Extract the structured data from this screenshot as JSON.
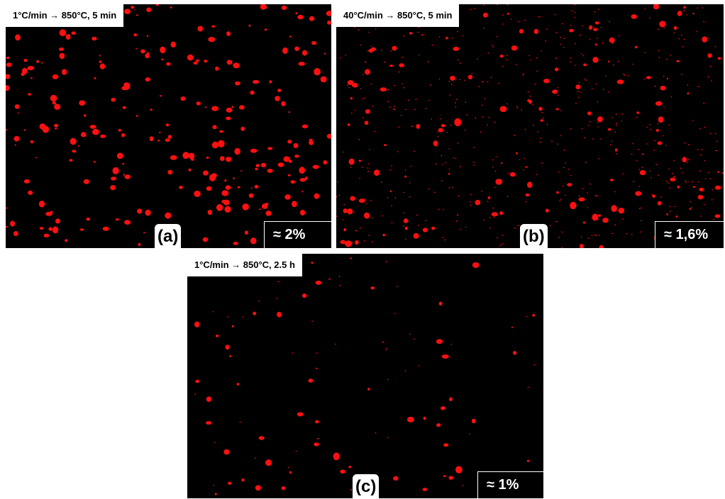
{
  "panels": [
    {
      "caption": "1°C/min → 850°C, 5 min",
      "label": "(a)",
      "fraction": "≈ 2%"
    },
    {
      "caption": "40°C/min → 850°C, 5 min",
      "label": "(b)",
      "fraction": "≈ 1,6%"
    },
    {
      "caption": "1°C/min → 850°C, 2.5 h",
      "label": "(c)",
      "fraction": "≈ 1%"
    }
  ]
}
